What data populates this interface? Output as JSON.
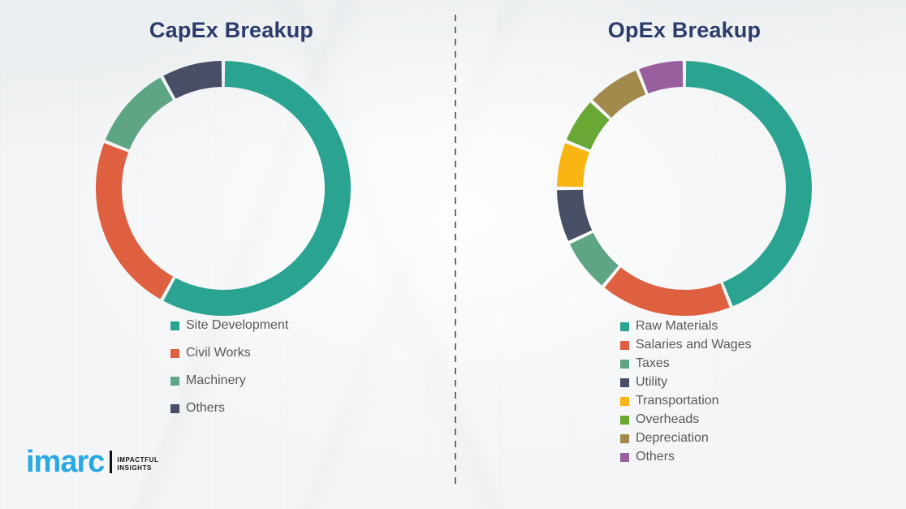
{
  "page": {
    "background_color": "#f4f5f6",
    "title_color": "#2b3c6b",
    "legend_text_color": "#595959",
    "divider_color": "#6a6e71"
  },
  "chart_data": [
    {
      "type": "pie",
      "subtype": "donut",
      "title": "CapEx Breakup",
      "legend_position": "bottom-left",
      "start_angle_deg": 0,
      "direction": "clockwise",
      "segments": [
        {
          "label": "Site Development",
          "value": 58,
          "color": "#2aa491"
        },
        {
          "label": "Civil Works",
          "value": 23,
          "color": "#df5f41"
        },
        {
          "label": "Machinery",
          "value": 11,
          "color": "#5da584"
        },
        {
          "label": "Others",
          "value": 8,
          "color": "#474e66"
        }
      ]
    },
    {
      "type": "pie",
      "subtype": "donut",
      "title": "OpEx Breakup",
      "legend_position": "bottom-left",
      "start_angle_deg": 0,
      "direction": "clockwise",
      "segments": [
        {
          "label": "Raw Materials",
          "value": 44,
          "color": "#2aa491"
        },
        {
          "label": "Salaries and Wages",
          "value": 17,
          "color": "#df5f41"
        },
        {
          "label": "Taxes",
          "value": 7,
          "color": "#5da584"
        },
        {
          "label": "Utility",
          "value": 7,
          "color": "#474e66"
        },
        {
          "label": "Transportation",
          "value": 6,
          "color": "#f9b513"
        },
        {
          "label": "Overheads",
          "value": 6,
          "color": "#6aa835"
        },
        {
          "label": "Depreciation",
          "value": 7,
          "color": "#a28a4d"
        },
        {
          "label": "Others",
          "value": 6,
          "color": "#975f9d"
        }
      ]
    }
  ],
  "logo": {
    "brand": "imarc",
    "brand_color": "#29a9e1",
    "tagline_line1": "IMPACTFUL",
    "tagline_line2": "INSIGHTS"
  }
}
